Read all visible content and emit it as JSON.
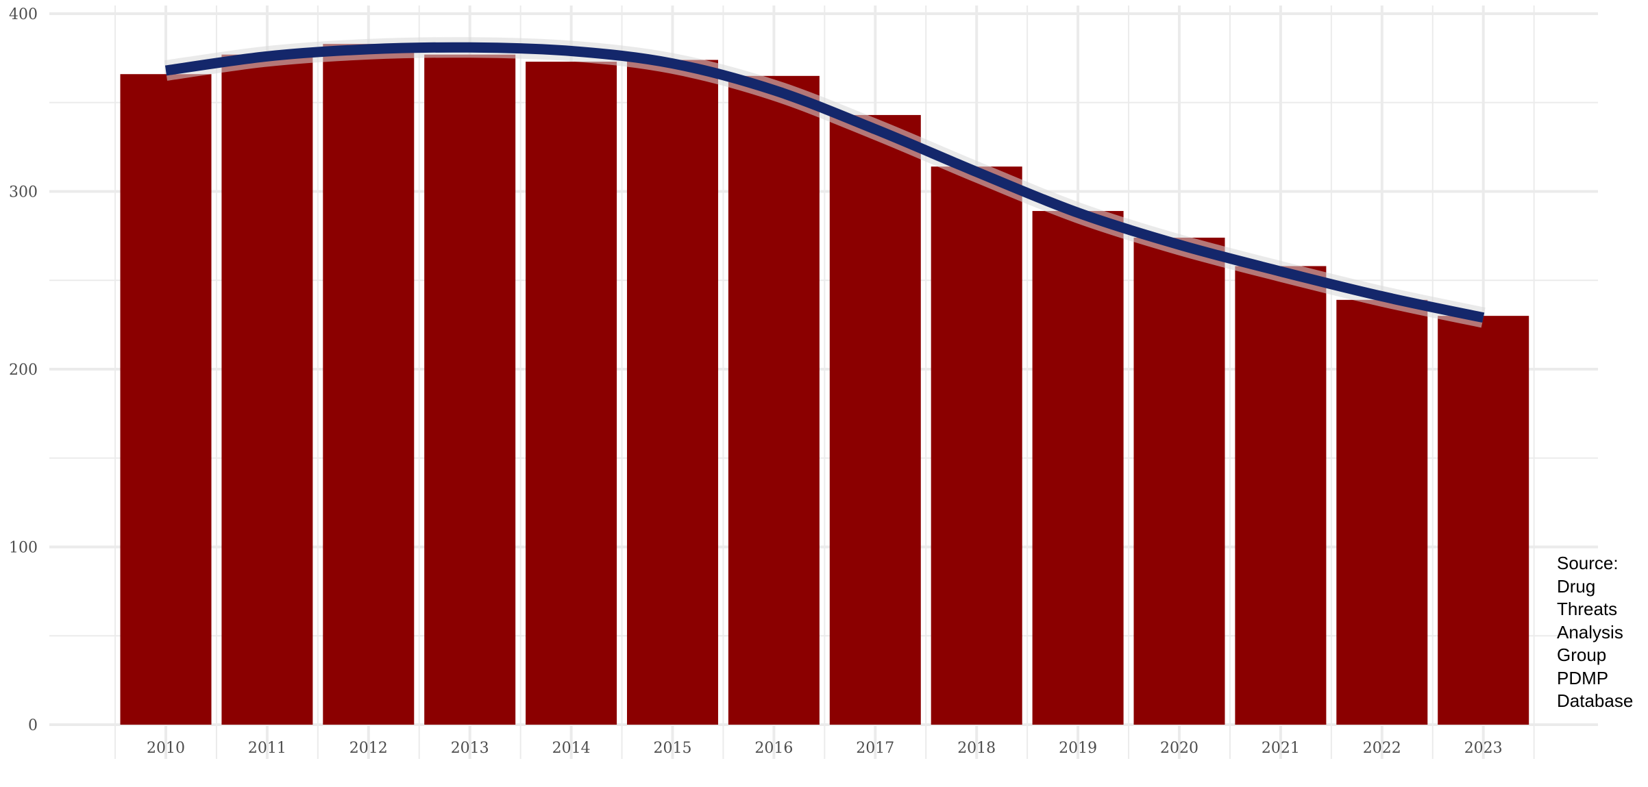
{
  "chart_data": {
    "type": "bar",
    "title": "",
    "xlabel": "",
    "ylabel": "",
    "categories": [
      "2010",
      "2011",
      "2012",
      "2013",
      "2014",
      "2015",
      "2016",
      "2017",
      "2018",
      "2019",
      "2020",
      "2021",
      "2022",
      "2023"
    ],
    "series": [
      {
        "type": "bar",
        "values": [
          366,
          377,
          383,
          377,
          373,
          374,
          365,
          343,
          314,
          289,
          274,
          258,
          239,
          230
        ],
        "color": "#8b0000"
      },
      {
        "type": "line",
        "smooth": true,
        "values": [
          368,
          376,
          380,
          381,
          379,
          372,
          357,
          335,
          311,
          288,
          270,
          255,
          241,
          229
        ],
        "color": "#14276b",
        "confidence_band": true,
        "band_color": "#d9d9d9"
      }
    ],
    "ylim": [
      0,
      400
    ],
    "yticks": [
      0,
      100,
      200,
      300,
      400
    ],
    "grid": true,
    "background": "#ffffff",
    "grid_color": "#ebebeb"
  },
  "caption": "Source:\nDrug\nThreats\nAnalysis\nGroup\nPDMP\nDatabase"
}
